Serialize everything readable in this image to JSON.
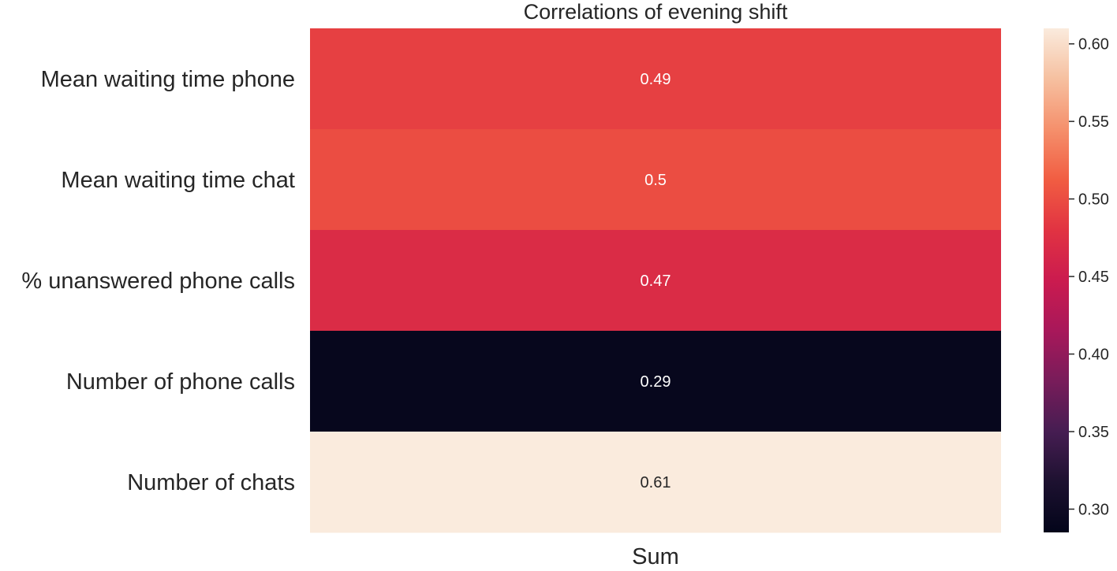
{
  "chart_data": {
    "type": "heatmap",
    "title": "Correlations of evening shift",
    "xlabel": "",
    "ylabel": "",
    "columns": [
      "Sum"
    ],
    "rows": [
      "Mean waiting time phone",
      "Mean waiting time chat",
      "% unanswered phone calls",
      "Number of phone calls",
      "Number of chats"
    ],
    "values": [
      0.49,
      0.5,
      0.47,
      0.29,
      0.61
    ],
    "value_labels": [
      "0.49",
      "0.5",
      "0.47",
      "0.29",
      "0.61"
    ],
    "colorbar": {
      "min": 0.285,
      "max": 0.61,
      "ticks": [
        0.3,
        0.35,
        0.4,
        0.45,
        0.5,
        0.55,
        0.6
      ],
      "tick_labels": [
        "0.30",
        "0.35",
        "0.40",
        "0.45",
        "0.50",
        "0.55",
        "0.60"
      ],
      "colormap": "rocket",
      "stops": [
        "#03051a",
        "#1d1130",
        "#461d52",
        "#781c5a",
        "#a8185a",
        "#cb1b4f",
        "#e13342",
        "#f15d42",
        "#f5906c",
        "#f6c0a0",
        "#faebdd"
      ]
    },
    "grid": false,
    "legend": "colorbar-right"
  }
}
